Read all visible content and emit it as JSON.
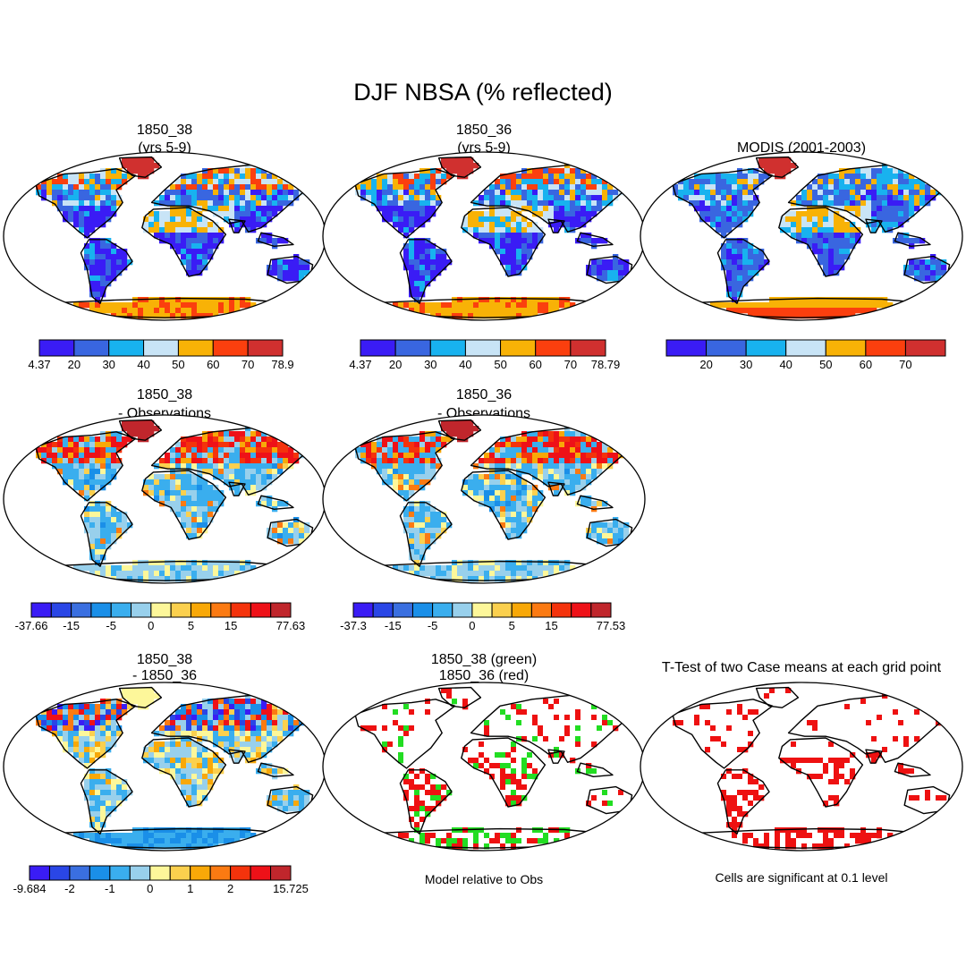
{
  "figure": {
    "title": "DJF NBSA (% reflected)",
    "colors": {
      "ocean": "#ffffff",
      "coast": "#000000",
      "green": "#22dd22",
      "red": "#ee1111"
    }
  },
  "chart_data": [
    {
      "id": "p1",
      "type": "map",
      "title_lines": [
        "1850_38",
        "(yrs 5-9)"
      ],
      "fill": "abs_model1",
      "colorbar": {
        "colors": [
          "#3a1cf5",
          "#3966e0",
          "#18b2ef",
          "#c8e4f6",
          "#f8b206",
          "#fb3f0e",
          "#d0302f"
        ],
        "labels": [
          "4.37",
          "20",
          "30",
          "40",
          "50",
          "60",
          "70",
          "78.9"
        ]
      }
    },
    {
      "id": "p2",
      "type": "map",
      "title_lines": [
        "1850_36",
        "(yrs 5-9)"
      ],
      "fill": "abs_model2",
      "colorbar": {
        "colors": [
          "#3a1cf5",
          "#3966e0",
          "#18b2ef",
          "#c8e4f6",
          "#f8b206",
          "#fb3f0e",
          "#d0302f"
        ],
        "labels": [
          "4.37",
          "20",
          "30",
          "40",
          "50",
          "60",
          "70",
          "78.79"
        ]
      }
    },
    {
      "id": "p3",
      "type": "map",
      "title_lines": [
        "MODIS (2001-2003)"
      ],
      "fill": "abs_obs",
      "colorbar": {
        "colors": [
          "#3a1cf5",
          "#3966e0",
          "#18b2ef",
          "#c8e4f6",
          "#f8b206",
          "#fb3f0e",
          "#d0302f"
        ],
        "labels": [
          "",
          "20",
          "30",
          "40",
          "50",
          "60",
          "70",
          ""
        ]
      }
    },
    {
      "id": "p4",
      "type": "map",
      "title_lines": [
        "1850_38",
        "- Observations"
      ],
      "fill": "diff_obs",
      "colorbar": {
        "colors": [
          "#3a1cf5",
          "#2a46e6",
          "#3a6fe0",
          "#1a8fe8",
          "#3aaeee",
          "#98d0ec",
          "#fdf79a",
          "#fbd04e",
          "#f8a808",
          "#fb7a12",
          "#f4330c",
          "#ee1118",
          "#c0262c"
        ],
        "labels": [
          "-37.66",
          "",
          "-15",
          "",
          "-5",
          "",
          "0",
          "",
          "5",
          "",
          "15",
          "",
          "",
          "77.63"
        ]
      }
    },
    {
      "id": "p5",
      "type": "map",
      "title_lines": [
        "1850_36",
        "- Observations"
      ],
      "fill": "diff_obs",
      "colorbar": {
        "colors": [
          "#3a1cf5",
          "#2a46e6",
          "#3a6fe0",
          "#1a8fe8",
          "#3aaeee",
          "#98d0ec",
          "#fdf79a",
          "#fbd04e",
          "#f8a808",
          "#fb7a12",
          "#f4330c",
          "#ee1118",
          "#c0262c"
        ],
        "labels": [
          "-37.3",
          "",
          "-15",
          "",
          "-5",
          "",
          "0",
          "",
          "5",
          "",
          "15",
          "",
          "",
          "77.53"
        ]
      }
    },
    {
      "id": "p7",
      "type": "map",
      "title_lines": [
        "1850_38",
        "- 1850_36"
      ],
      "fill": "diff_model",
      "colorbar": {
        "colors": [
          "#3a1cf5",
          "#2a46e6",
          "#3a6fe0",
          "#1a8fe8",
          "#3aaeee",
          "#98d0ec",
          "#fdf79a",
          "#fbd04e",
          "#f8a808",
          "#fb7a12",
          "#f4330c",
          "#ee1118",
          "#c0262c"
        ],
        "labels": [
          "-9.684",
          "",
          "-2",
          "",
          "-1",
          "",
          "0",
          "",
          "1",
          "",
          "2",
          "",
          "",
          "15.725"
        ]
      }
    },
    {
      "id": "p8",
      "type": "map",
      "title_lines": [
        "1850_38 (green)",
        "1850_36 (red)"
      ],
      "fill": "sig_two",
      "caption": "Model relative to Obs"
    },
    {
      "id": "p9",
      "type": "map",
      "title_lines": [
        "T-Test of two Case means at each grid point"
      ],
      "fill": "sig_one",
      "caption": "Cells are significant at 0.1 level"
    }
  ]
}
